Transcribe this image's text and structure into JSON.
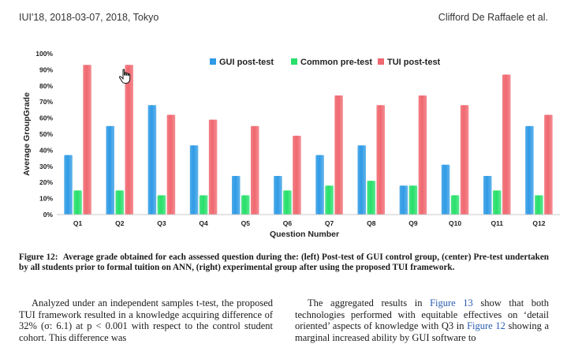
{
  "header": {
    "left": "IUI'18, 2018-03-07, 2018, Tokyo",
    "right": "Clifford De Raffaele et al."
  },
  "chart_data": {
    "type": "bar",
    "categories": [
      "Q1",
      "Q2",
      "Q3",
      "Q4",
      "Q5",
      "Q6",
      "Q7",
      "Q8",
      "Q9",
      "Q10",
      "Q11",
      "Q12"
    ],
    "series": [
      {
        "name": "GUI post-test",
        "color": "#2f9be6",
        "values": [
          37,
          55,
          68,
          43,
          24,
          24,
          37,
          43,
          18,
          31,
          24,
          55
        ]
      },
      {
        "name": "Common pre-test",
        "color": "#27e06a",
        "values": [
          15,
          15,
          12,
          12,
          12,
          15,
          18,
          21,
          18,
          12,
          15,
          12
        ]
      },
      {
        "name": "TUI post-test",
        "color": "#f06870",
        "values": [
          93,
          93,
          62,
          59,
          55,
          49,
          74,
          68,
          74,
          68,
          87,
          62
        ]
      }
    ],
    "yticks": [
      "0%",
      "10%",
      "20%",
      "30%",
      "40%",
      "50%",
      "60%",
      "70%",
      "80%",
      "90%",
      "100%"
    ],
    "ylim": [
      0,
      100
    ],
    "xlabel": "Question Number",
    "ylabel": "Average GroupGrade",
    "legend_position": "top",
    "grid": false
  },
  "caption": {
    "label": "Figure 12:",
    "text": "Average grade obtained for each assessed question during the: (left) Post-test of GUI control group, (center) Pre-test undertaken by all students prior to formal tuition on ANN, (right) experimental group after using the proposed TUI framework."
  },
  "body": {
    "left_col": "Analyzed under an independent samples t-test, the proposed TUI framework resulted in a knowledge acquiring difference of 32% (σ: 6.1) at p < 0.001 with respect to the control student cohort. This difference was",
    "right_col_1": "The aggregated results in ",
    "right_link_1": "Figure 13",
    "right_col_2": " show that both technologies performed with equitable effectives on ‘detail oriented’ aspects of knowledge with Q3 in ",
    "right_link_2": "Figure 12",
    "right_col_3": " showing a marginal increased ability by GUI software to"
  },
  "cursor_icon": "hand-pointer-icon"
}
